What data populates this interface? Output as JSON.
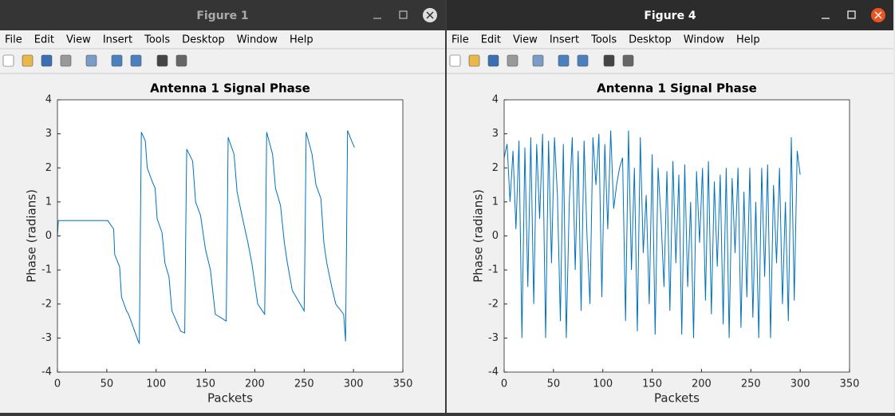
{
  "windows": [
    {
      "title": "Figure 1",
      "menu": [
        "File",
        "Edit",
        "View",
        "Insert",
        "Tools",
        "Desktop",
        "Window",
        "Help"
      ]
    },
    {
      "title": "Figure 4",
      "menu": [
        "File",
        "Edit",
        "View",
        "Insert",
        "Tools",
        "Desktop",
        "Window",
        "Help"
      ]
    }
  ],
  "chart_data": [
    {
      "type": "line",
      "title": "Antenna 1 Signal Phase",
      "x_label": "Packets",
      "y_label": "Phase (radians)",
      "xlim": [
        0,
        350
      ],
      "xticks": [
        0,
        50,
        100,
        150,
        200,
        250,
        300,
        350
      ],
      "ylim": [
        -4,
        4
      ],
      "yticks": [
        -4,
        -3,
        -2,
        -1,
        0,
        1,
        2,
        3,
        4
      ],
      "color": "#0072bd",
      "x": [
        0,
        1,
        51,
        57,
        58,
        63,
        65,
        70,
        72,
        82,
        83,
        84,
        85,
        89,
        91,
        96,
        99,
        101,
        106,
        109,
        113,
        116,
        125,
        129,
        130,
        131,
        137,
        140,
        145,
        150,
        155,
        160,
        171,
        172,
        173,
        179,
        182,
        187,
        193,
        197,
        203,
        210,
        211,
        212,
        218,
        221,
        226,
        230,
        233,
        238,
        250,
        251,
        252,
        258,
        262,
        267,
        270,
        273,
        278,
        282,
        290,
        292,
        293,
        294,
        298,
        301
      ],
      "values": [
        0,
        0.45,
        0.45,
        0.2,
        -0.55,
        -0.9,
        -1.8,
        -2.2,
        -2.3,
        -3.1,
        -3.15,
        0,
        3.05,
        2.8,
        2.0,
        1.6,
        1.4,
        0.5,
        0.1,
        -0.8,
        -1.2,
        -2.2,
        -2.8,
        -2.85,
        0,
        2.55,
        2.2,
        1.0,
        0.6,
        -0.4,
        -1.0,
        -2.3,
        -2.5,
        0,
        2.9,
        2.4,
        1.3,
        0.6,
        -0.2,
        -0.8,
        -2.0,
        -2.3,
        0,
        3.05,
        2.4,
        1.4,
        0.9,
        -0.2,
        -0.8,
        -1.6,
        -2.2,
        0,
        3.05,
        2.4,
        1.5,
        1.1,
        -0.2,
        -0.8,
        -1.5,
        -2.0,
        -2.3,
        -3.1,
        0,
        3.1,
        2.8,
        2.6
      ]
    },
    {
      "type": "line",
      "title": "Antenna 1 Signal Phase",
      "x_label": "Packets",
      "y_label": "Phase (radians)",
      "xlim": [
        0,
        350
      ],
      "xticks": [
        0,
        50,
        100,
        150,
        200,
        250,
        300,
        350
      ],
      "ylim": [
        -4,
        4
      ],
      "yticks": [
        -4,
        -3,
        -2,
        -1,
        0,
        1,
        2,
        3,
        4
      ],
      "color": "#0072bd",
      "x": [
        0,
        3,
        6,
        9,
        12,
        15,
        18,
        21,
        24,
        27,
        30,
        33,
        36,
        39,
        42,
        45,
        48,
        51,
        54,
        57,
        60,
        63,
        66,
        69,
        72,
        75,
        78,
        81,
        84,
        87,
        90,
        93,
        96,
        99,
        102,
        105,
        108,
        111,
        114,
        117,
        120,
        123,
        126,
        129,
        132,
        135,
        138,
        141,
        144,
        147,
        150,
        153,
        156,
        159,
        162,
        165,
        168,
        171,
        174,
        177,
        180,
        183,
        186,
        189,
        192,
        195,
        198,
        201,
        204,
        207,
        210,
        213,
        216,
        219,
        222,
        225,
        228,
        231,
        234,
        237,
        240,
        243,
        246,
        249,
        252,
        255,
        258,
        261,
        264,
        267,
        270,
        273,
        276,
        279,
        282,
        285,
        288,
        291,
        294,
        297,
        300
      ],
      "values": [
        2.3,
        2.7,
        1.0,
        2.5,
        0.2,
        2.8,
        -3.0,
        2.6,
        -1.5,
        2.9,
        -2.0,
        2.7,
        0.5,
        3.0,
        -3.0,
        2.8,
        -0.8,
        2.9,
        1.2,
        -2.5,
        2.7,
        -3.0,
        1.0,
        2.9,
        -1.0,
        2.5,
        -2.2,
        2.8,
        0.0,
        -2.0,
        2.9,
        1.5,
        3.0,
        -1.8,
        2.7,
        0.2,
        3.1,
        0.8,
        1.5,
        2.0,
        2.3,
        -2.5,
        3.1,
        -1.0,
        2.0,
        -2.8,
        2.9,
        -0.5,
        1.2,
        -2.0,
        2.4,
        -2.9,
        2.0,
        0.5,
        -1.5,
        1.9,
        -2.2,
        2.2,
        -0.8,
        1.8,
        -2.9,
        2.1,
        -1.5,
        1.0,
        -3.0,
        1.9,
        -0.2,
        2.0,
        -1.9,
        2.2,
        -2.3,
        1.6,
        -0.9,
        1.8,
        -2.6,
        2.0,
        -3.0,
        1.7,
        -0.5,
        2.0,
        -2.7,
        1.3,
        -1.8,
        2.0,
        -2.4,
        1.0,
        -3.0,
        2.0,
        -1.2,
        2.1,
        -3.0,
        1.5,
        -0.8,
        2.0,
        -2.0,
        1.0,
        -2.5,
        2.9,
        -1.9,
        2.5,
        1.8
      ]
    }
  ]
}
